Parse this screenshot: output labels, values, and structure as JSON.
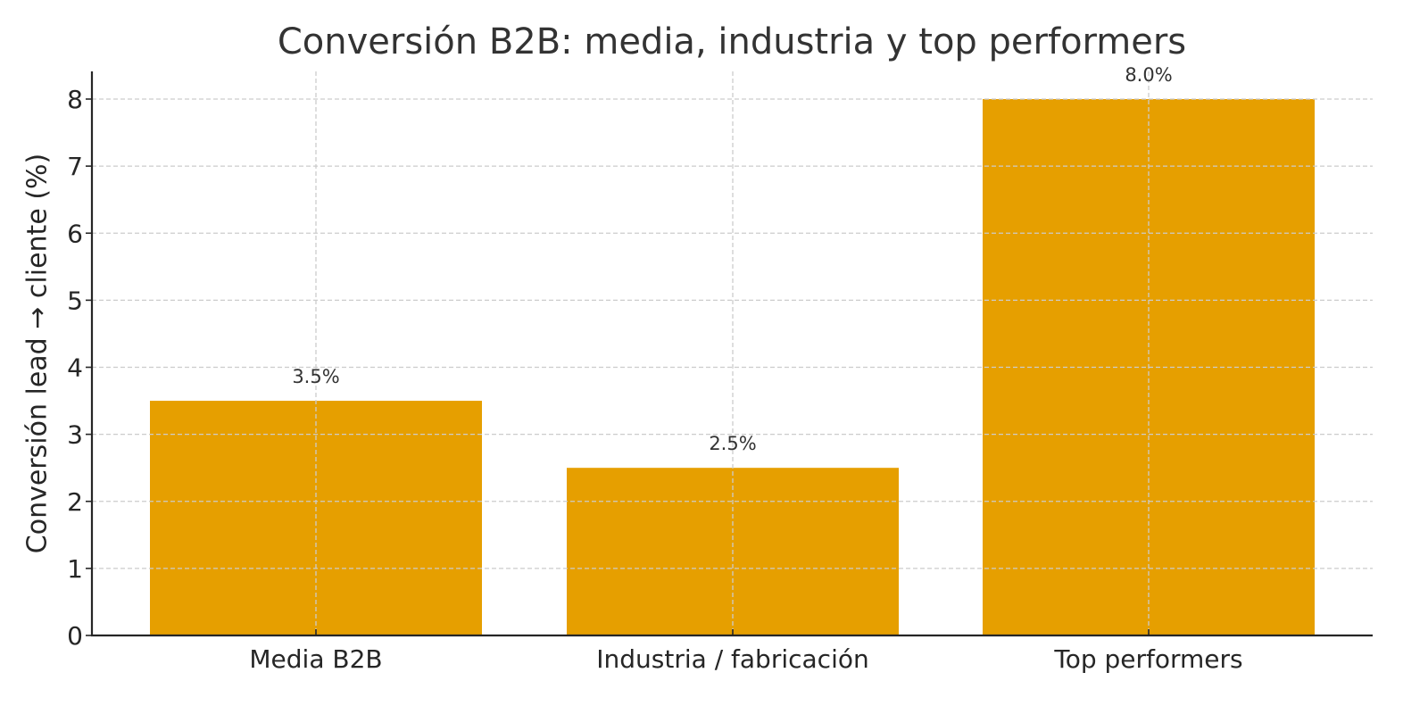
{
  "chart_data": {
    "type": "bar",
    "title": "Conversión B2B: media, industria y top performers",
    "xlabel": "",
    "ylabel": "Conversión lead → cliente (%)",
    "categories": [
      "Media B2B",
      "Industria / fabricación",
      "Top performers"
    ],
    "values": [
      3.5,
      2.5,
      8.0
    ],
    "value_labels": [
      "3.5%",
      "2.5%",
      "8.0%"
    ],
    "ylim": [
      0,
      8.4
    ],
    "yticks": [
      0,
      1,
      2,
      3,
      4,
      5,
      6,
      7,
      8
    ],
    "grid": true,
    "legend": null,
    "colors": {
      "bar": "#E69F00",
      "grid": "#cccccc",
      "axis": "#262626",
      "title": "#333333"
    }
  }
}
